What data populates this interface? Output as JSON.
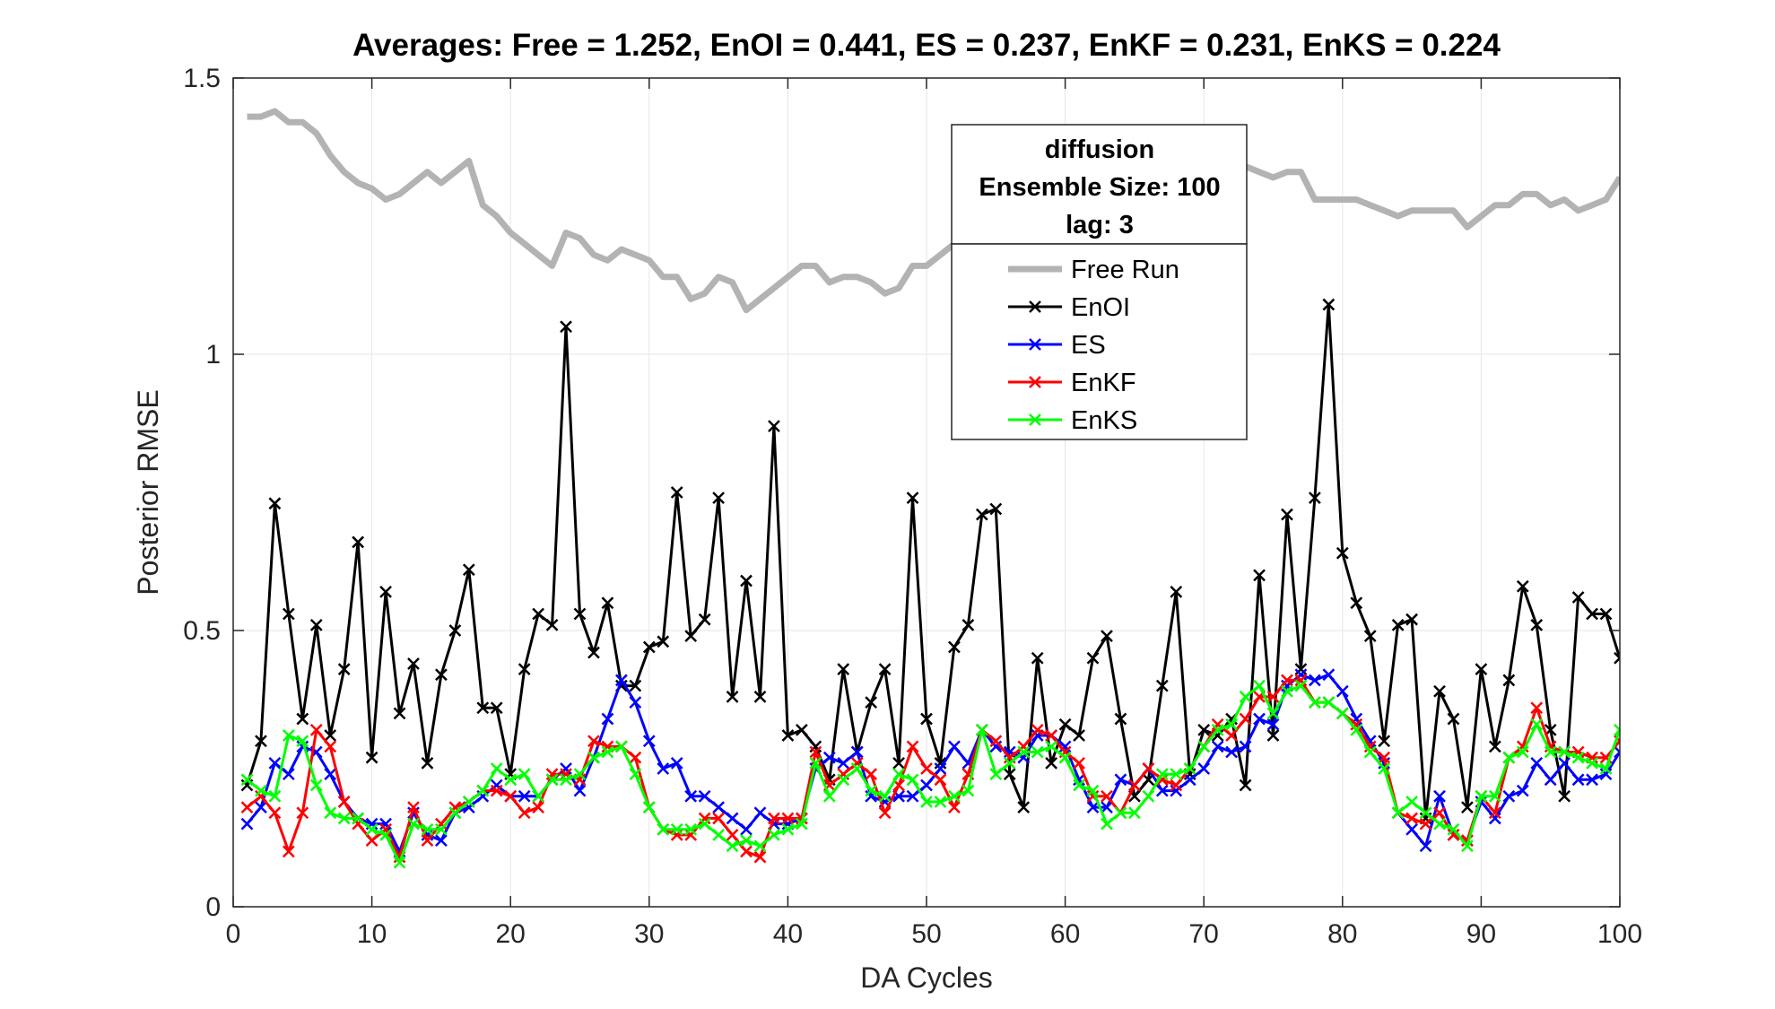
{
  "chart_data": {
    "type": "line",
    "title": "Averages: Free = 1.252, EnOI = 0.441, ES = 0.237, EnKF = 0.231, EnKS = 0.224",
    "xlabel": "DA Cycles",
    "ylabel": "Posterior RMSE",
    "xlim": [
      0,
      100
    ],
    "ylim": [
      0,
      1.5
    ],
    "xticks": [
      0,
      10,
      20,
      30,
      40,
      50,
      60,
      70,
      80,
      90,
      100
    ],
    "yticks": [
      0,
      0.5,
      1,
      1.5
    ],
    "ytick_labels": [
      "0",
      "0.5",
      "1",
      "1.5"
    ],
    "grid": true,
    "legend_position": "top-center",
    "legend_title": [
      "diffusion",
      "Ensemble Size: 100",
      "lag: 3"
    ],
    "series": [
      {
        "name": "Free Run",
        "color": "#b3b3b3",
        "marker": "none",
        "values": [
          1.43,
          1.43,
          1.44,
          1.42,
          1.42,
          1.4,
          1.36,
          1.33,
          1.31,
          1.3,
          1.28,
          1.29,
          1.31,
          1.33,
          1.31,
          1.33,
          1.35,
          1.27,
          1.25,
          1.22,
          1.2,
          1.18,
          1.16,
          1.22,
          1.21,
          1.18,
          1.17,
          1.19,
          1.18,
          1.17,
          1.14,
          1.14,
          1.1,
          1.11,
          1.14,
          1.13,
          1.08,
          1.1,
          1.12,
          1.14,
          1.16,
          1.16,
          1.13,
          1.14,
          1.14,
          1.13,
          1.11,
          1.12,
          1.16,
          1.16,
          1.18,
          1.2,
          1.22,
          1.24,
          1.26,
          1.27,
          1.28,
          1.29,
          1.3,
          1.31,
          1.32,
          1.33,
          1.33,
          1.34,
          1.33,
          1.32,
          1.32,
          1.31,
          1.31,
          1.32,
          1.33,
          1.33,
          1.34,
          1.33,
          1.32,
          1.33,
          1.33,
          1.28,
          1.28,
          1.28,
          1.28,
          1.27,
          1.26,
          1.25,
          1.26,
          1.26,
          1.26,
          1.26,
          1.23,
          1.25,
          1.27,
          1.27,
          1.29,
          1.29,
          1.27,
          1.28,
          1.26,
          1.27,
          1.28,
          1.32
        ]
      },
      {
        "name": "EnOI",
        "color": "#000000",
        "marker": "x",
        "values": [
          0.22,
          0.3,
          0.73,
          0.53,
          0.34,
          0.51,
          0.31,
          0.43,
          0.66,
          0.27,
          0.57,
          0.35,
          0.44,
          0.26,
          0.42,
          0.5,
          0.61,
          0.36,
          0.36,
          0.24,
          0.43,
          0.53,
          0.51,
          1.05,
          0.53,
          0.46,
          0.55,
          0.4,
          0.4,
          0.47,
          0.48,
          0.75,
          0.49,
          0.52,
          0.74,
          0.38,
          0.59,
          0.38,
          0.87,
          0.31,
          0.32,
          0.29,
          0.23,
          0.43,
          0.28,
          0.37,
          0.43,
          0.26,
          0.74,
          0.34,
          0.26,
          0.47,
          0.51,
          0.71,
          0.72,
          0.24,
          0.18,
          0.45,
          0.26,
          0.33,
          0.31,
          0.45,
          0.49,
          0.34,
          0.2,
          0.23,
          0.4,
          0.57,
          0.24,
          0.32,
          0.31,
          0.34,
          0.22,
          0.6,
          0.31,
          0.71,
          0.43,
          0.74,
          1.09,
          0.64,
          0.55,
          0.49,
          0.3,
          0.51,
          0.52,
          0.16,
          0.39,
          0.34,
          0.18,
          0.43,
          0.29,
          0.41,
          0.58,
          0.51,
          0.32,
          0.2,
          0.56,
          0.53,
          0.53,
          0.45
        ]
      },
      {
        "name": "ES",
        "color": "#0000ff",
        "marker": "x",
        "values": [
          0.15,
          0.18,
          0.26,
          0.24,
          0.29,
          0.28,
          0.24,
          0.19,
          0.16,
          0.15,
          0.15,
          0.1,
          0.17,
          0.13,
          0.12,
          0.17,
          0.18,
          0.2,
          0.22,
          0.2,
          0.2,
          0.2,
          0.23,
          0.25,
          0.21,
          0.27,
          0.34,
          0.41,
          0.37,
          0.3,
          0.25,
          0.26,
          0.2,
          0.2,
          0.18,
          0.16,
          0.14,
          0.17,
          0.15,
          0.15,
          0.16,
          0.25,
          0.27,
          0.26,
          0.28,
          0.2,
          0.19,
          0.2,
          0.2,
          0.22,
          0.25,
          0.29,
          0.26,
          0.32,
          0.29,
          0.28,
          0.27,
          0.31,
          0.31,
          0.29,
          0.23,
          0.18,
          0.18,
          0.23,
          0.22,
          0.25,
          0.21,
          0.21,
          0.23,
          0.25,
          0.29,
          0.28,
          0.29,
          0.34,
          0.33,
          0.4,
          0.42,
          0.41,
          0.42,
          0.39,
          0.34,
          0.3,
          0.26,
          0.17,
          0.14,
          0.11,
          0.2,
          0.13,
          0.12,
          0.19,
          0.16,
          0.2,
          0.21,
          0.26,
          0.23,
          0.26,
          0.23,
          0.23,
          0.24,
          0.28
        ]
      },
      {
        "name": "EnKF",
        "color": "#ff0000",
        "marker": "x",
        "values": [
          0.18,
          0.2,
          0.17,
          0.1,
          0.17,
          0.32,
          0.29,
          0.19,
          0.15,
          0.12,
          0.14,
          0.09,
          0.18,
          0.12,
          0.15,
          0.18,
          0.19,
          0.21,
          0.21,
          0.2,
          0.17,
          0.18,
          0.24,
          0.24,
          0.23,
          0.3,
          0.29,
          0.29,
          0.27,
          0.18,
          0.14,
          0.13,
          0.13,
          0.16,
          0.16,
          0.13,
          0.1,
          0.09,
          0.16,
          0.16,
          0.16,
          0.28,
          0.22,
          0.24,
          0.26,
          0.24,
          0.17,
          0.22,
          0.29,
          0.25,
          0.23,
          0.18,
          0.24,
          0.32,
          0.3,
          0.27,
          0.29,
          0.32,
          0.31,
          0.28,
          0.26,
          0.2,
          0.2,
          0.17,
          0.22,
          0.25,
          0.23,
          0.22,
          0.25,
          0.29,
          0.33,
          0.31,
          0.34,
          0.38,
          0.38,
          0.41,
          0.41,
          0.37,
          0.37,
          0.35,
          0.33,
          0.29,
          0.27,
          0.17,
          0.16,
          0.15,
          0.17,
          0.13,
          0.12,
          0.2,
          0.17,
          0.27,
          0.29,
          0.36,
          0.29,
          0.28,
          0.28,
          0.27,
          0.27,
          0.3
        ]
      },
      {
        "name": "EnKS",
        "color": "#00ff00",
        "marker": "x",
        "values": [
          0.23,
          0.21,
          0.2,
          0.31,
          0.3,
          0.22,
          0.17,
          0.16,
          0.16,
          0.14,
          0.13,
          0.08,
          0.15,
          0.14,
          0.14,
          0.17,
          0.19,
          0.21,
          0.25,
          0.23,
          0.24,
          0.2,
          0.23,
          0.23,
          0.24,
          0.27,
          0.28,
          0.29,
          0.24,
          0.18,
          0.14,
          0.14,
          0.14,
          0.15,
          0.13,
          0.11,
          0.12,
          0.11,
          0.13,
          0.14,
          0.15,
          0.26,
          0.2,
          0.23,
          0.25,
          0.21,
          0.2,
          0.24,
          0.23,
          0.19,
          0.19,
          0.2,
          0.21,
          0.32,
          0.24,
          0.26,
          0.28,
          0.28,
          0.29,
          0.27,
          0.22,
          0.21,
          0.15,
          0.17,
          0.17,
          0.2,
          0.24,
          0.24,
          0.25,
          0.29,
          0.32,
          0.33,
          0.38,
          0.4,
          0.35,
          0.39,
          0.4,
          0.37,
          0.37,
          0.35,
          0.32,
          0.28,
          0.25,
          0.17,
          0.19,
          0.17,
          0.15,
          0.14,
          0.11,
          0.2,
          0.2,
          0.27,
          0.28,
          0.33,
          0.28,
          0.28,
          0.27,
          0.26,
          0.25,
          0.32
        ]
      }
    ]
  }
}
